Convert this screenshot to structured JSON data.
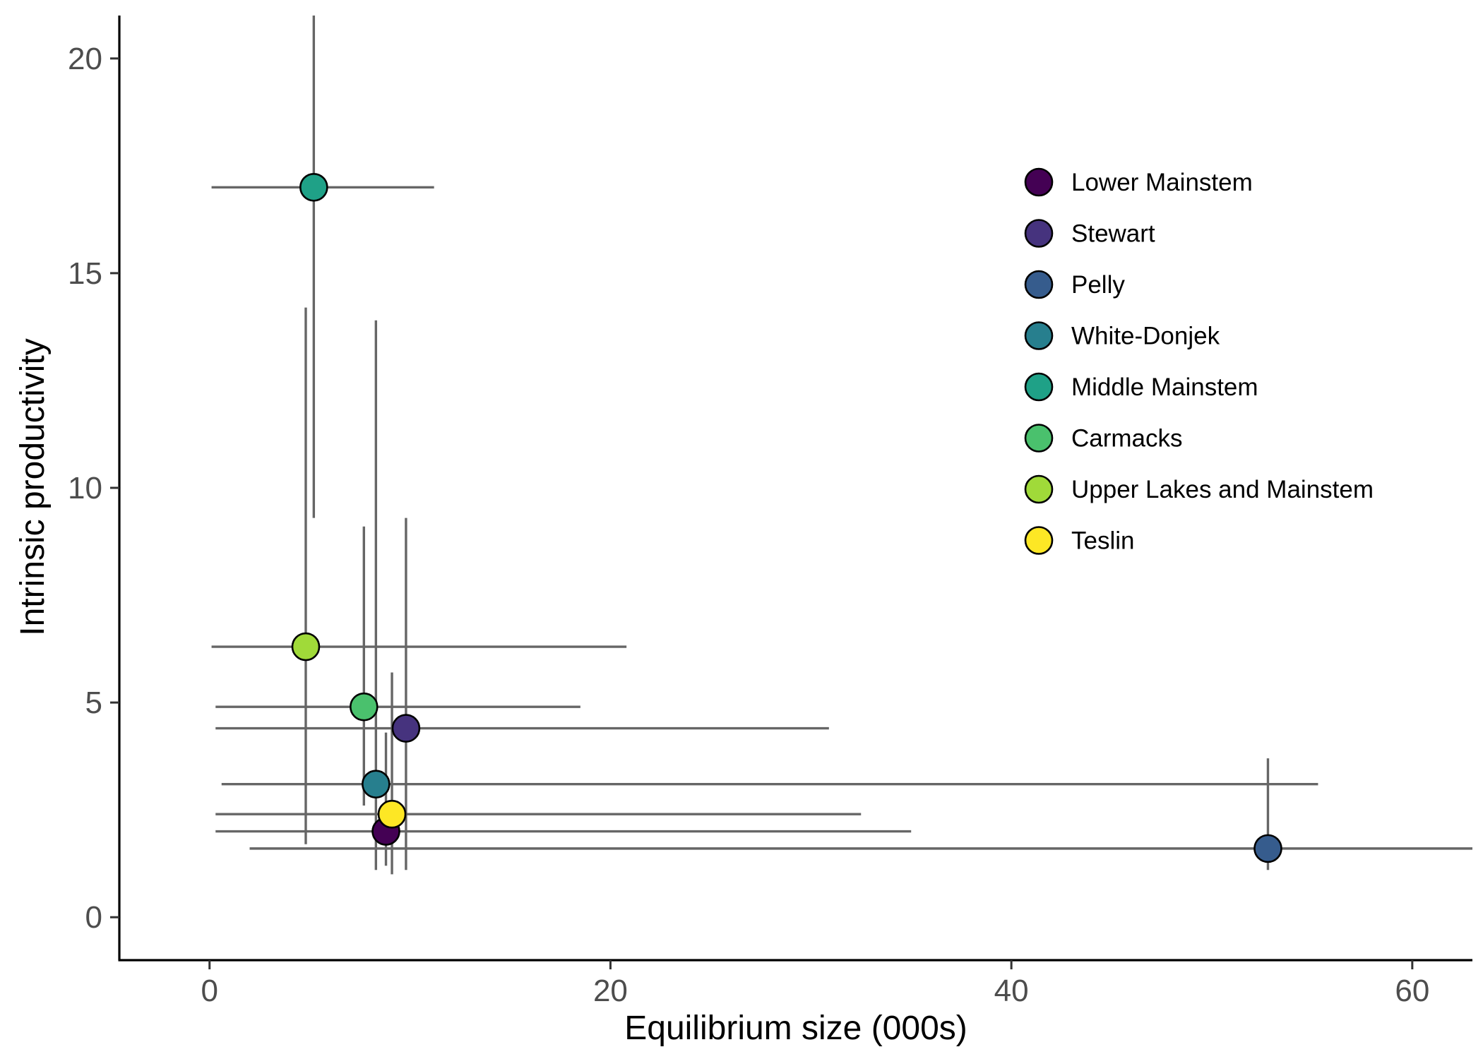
{
  "chart_data": {
    "type": "scatter",
    "title": "",
    "xlabel": "Equilibrium size (000s)",
    "ylabel": "Intrinsic productivity",
    "xlim": [
      -4.5,
      63
    ],
    "ylim": [
      -1,
      21
    ],
    "x_ticks": [
      0,
      20,
      40,
      60
    ],
    "y_ticks": [
      0,
      5,
      10,
      15,
      20
    ],
    "grid": false,
    "legend_position": "top-right",
    "error_bars": true,
    "series": [
      {
        "name": "Lower Mainstem",
        "color": "#440154",
        "x": 8.8,
        "y": 2.0,
        "x_err": [
          0.3,
          35.0
        ],
        "y_err": [
          1.2,
          4.3
        ]
      },
      {
        "name": "Stewart",
        "color": "#46337E",
        "x": 9.8,
        "y": 4.4,
        "x_err": [
          0.3,
          30.9
        ],
        "y_err": [
          1.1,
          9.3
        ]
      },
      {
        "name": "Pelly",
        "color": "#365C8D",
        "x": 52.8,
        "y": 1.6,
        "x_err": [
          2.0,
          63.0
        ],
        "y_err": [
          1.1,
          3.7
        ]
      },
      {
        "name": "White-Donjek",
        "color": "#277F8E",
        "x": 8.3,
        "y": 3.1,
        "x_err": [
          0.6,
          55.3
        ],
        "y_err": [
          1.1,
          13.9
        ]
      },
      {
        "name": "Middle Mainstem",
        "color": "#1FA187",
        "x": 5.2,
        "y": 17.0,
        "x_err": [
          0.1,
          11.2
        ],
        "y_err": [
          9.3,
          21.0
        ]
      },
      {
        "name": "Carmacks",
        "color": "#4AC16D",
        "x": 7.7,
        "y": 4.9,
        "x_err": [
          0.3,
          18.5
        ],
        "y_err": [
          2.6,
          9.1
        ]
      },
      {
        "name": "Upper Lakes and Mainstem",
        "color": "#A0DA39",
        "x": 4.8,
        "y": 6.3,
        "x_err": [
          0.1,
          20.8
        ],
        "y_err": [
          1.7,
          14.2
        ]
      },
      {
        "name": "Teslin",
        "color": "#FDE725",
        "x": 9.1,
        "y": 2.4,
        "x_err": [
          0.3,
          32.5
        ],
        "y_err": [
          1.0,
          5.7
        ]
      }
    ]
  }
}
